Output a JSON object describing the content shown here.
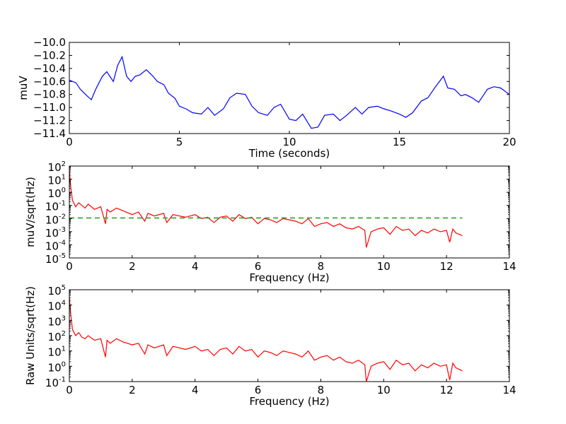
{
  "chart_data": [
    {
      "type": "line",
      "xlabel": "Time (seconds)",
      "ylabel": "muV",
      "xlim": [
        0,
        20
      ],
      "ylim": [
        -11.4,
        -10.0
      ],
      "x_ticks": [
        0,
        5,
        10,
        15,
        20
      ],
      "x_tick_labels": [
        "0",
        "5",
        "10",
        "15",
        "20"
      ],
      "y_ticks": [
        -11.4,
        -11.2,
        -11.0,
        -10.8,
        -10.6,
        -10.4,
        -10.2,
        -10.0
      ],
      "y_tick_labels": [
        "−11.4",
        "−11.2",
        "−11.0",
        "−10.8",
        "−10.6",
        "−10.4",
        "−10.2",
        "−10.0"
      ],
      "grid": false,
      "series": [
        {
          "color": "#0000ff",
          "style": "solid",
          "x": [
            0,
            0.3,
            0.5,
            0.8,
            1.0,
            1.2,
            1.5,
            1.7,
            2.0,
            2.2,
            2.4,
            2.6,
            2.8,
            3.0,
            3.2,
            3.5,
            3.8,
            4.0,
            4.3,
            4.5,
            4.8,
            5.0,
            5.3,
            5.6,
            6.0,
            6.3,
            6.6,
            7.0,
            7.3,
            7.6,
            8.0,
            8.3,
            8.6,
            9.0,
            9.3,
            9.6,
            10.0,
            10.3,
            10.6,
            11.0,
            11.3,
            11.6,
            12.0,
            12.3,
            12.6,
            13.0,
            13.3,
            13.6,
            14.0,
            14.3,
            14.6,
            15.0,
            15.3,
            15.6,
            16.0,
            16.3,
            16.6,
            17.0,
            17.2,
            17.5,
            17.8,
            18.0,
            18.3,
            18.6,
            19.0,
            19.3,
            19.6,
            20.0
          ],
          "values": [
            -10.58,
            -10.62,
            -10.72,
            -10.82,
            -10.88,
            -10.72,
            -10.52,
            -10.45,
            -10.6,
            -10.35,
            -10.22,
            -10.52,
            -10.6,
            -10.52,
            -10.5,
            -10.42,
            -10.52,
            -10.6,
            -10.65,
            -10.78,
            -10.86,
            -10.98,
            -11.02,
            -11.08,
            -11.1,
            -11.0,
            -11.12,
            -11.02,
            -10.85,
            -10.78,
            -10.8,
            -10.98,
            -11.08,
            -11.12,
            -11.0,
            -10.95,
            -11.18,
            -11.2,
            -11.1,
            -11.32,
            -11.3,
            -11.12,
            -11.1,
            -11.2,
            -11.12,
            -11.0,
            -11.1,
            -11.0,
            -10.98,
            -11.02,
            -11.05,
            -11.1,
            -11.15,
            -11.08,
            -10.9,
            -10.85,
            -10.7,
            -10.52,
            -10.7,
            -10.72,
            -10.82,
            -10.8,
            -10.85,
            -10.92,
            -10.72,
            -10.68,
            -10.7,
            -10.8
          ]
        }
      ]
    },
    {
      "type": "line",
      "xlabel": "Frequency (Hz)",
      "ylabel": "muV/sqrt(Hz)",
      "xlim": [
        0,
        14
      ],
      "ylim_log10": [
        -5,
        2
      ],
      "yscale": "log",
      "x_ticks": [
        0,
        2,
        4,
        6,
        8,
        10,
        12,
        14
      ],
      "x_tick_labels": [
        "0",
        "2",
        "4",
        "6",
        "8",
        "10",
        "12",
        "14"
      ],
      "y_ticks_log10": [
        -5,
        -4,
        -3,
        -2,
        -1,
        0,
        1,
        2
      ],
      "y_tick_bases": [
        "10",
        "10",
        "10",
        "10",
        "10",
        "10",
        "10",
        "10"
      ],
      "y_tick_exponents": [
        "-5",
        "-4",
        "-3",
        "-2",
        "-1",
        "0",
        "1",
        "2"
      ],
      "grid": false,
      "series": [
        {
          "color": "#ff0000",
          "style": "solid",
          "x": [
            0.0,
            0.05,
            0.1,
            0.2,
            0.3,
            0.4,
            0.5,
            0.6,
            0.8,
            1.0,
            1.15,
            1.2,
            1.3,
            1.5,
            1.7,
            2.0,
            2.2,
            2.4,
            2.5,
            2.7,
            3.0,
            3.1,
            3.3,
            3.5,
            3.7,
            4.0,
            4.2,
            4.4,
            4.6,
            4.8,
            5.0,
            5.2,
            5.4,
            5.6,
            5.8,
            6.0,
            6.2,
            6.4,
            6.6,
            6.8,
            7.0,
            7.2,
            7.4,
            7.6,
            7.8,
            8.0,
            8.2,
            8.4,
            8.6,
            8.8,
            9.0,
            9.2,
            9.4,
            9.45,
            9.6,
            9.8,
            10.0,
            10.2,
            10.4,
            10.6,
            10.8,
            11.0,
            11.2,
            11.4,
            11.6,
            11.8,
            12.0,
            12.1,
            12.2,
            12.3,
            12.5
          ],
          "values_log10": [
            1.6,
            0.3,
            -0.6,
            -1.1,
            -0.8,
            -1.0,
            -1.2,
            -0.9,
            -1.3,
            -1.1,
            -2.4,
            -1.3,
            -1.5,
            -1.2,
            -1.4,
            -1.7,
            -1.5,
            -2.2,
            -1.6,
            -1.8,
            -1.6,
            -2.3,
            -1.7,
            -1.8,
            -1.9,
            -1.7,
            -2.0,
            -1.9,
            -2.3,
            -1.9,
            -1.8,
            -2.2,
            -1.7,
            -2.0,
            -1.9,
            -2.4,
            -2.0,
            -2.1,
            -2.3,
            -2.0,
            -2.1,
            -2.2,
            -2.4,
            -2.0,
            -2.6,
            -2.4,
            -2.3,
            -2.6,
            -2.4,
            -2.7,
            -2.8,
            -2.6,
            -2.9,
            -4.2,
            -3.0,
            -2.8,
            -2.7,
            -3.2,
            -2.6,
            -2.9,
            -2.8,
            -3.3,
            -2.9,
            -3.1,
            -2.8,
            -3.0,
            -2.9,
            -3.8,
            -2.8,
            -3.1,
            -3.3
          ]
        },
        {
          "color": "#2ca02c",
          "style": "dashed",
          "x": [
            0,
            12.5
          ],
          "values_log10": [
            -1.95,
            -1.95
          ]
        }
      ]
    },
    {
      "type": "line",
      "xlabel": "Frequency (Hz)",
      "ylabel": "Raw Units/sqrt(Hz)",
      "xlim": [
        0,
        14
      ],
      "ylim_log10": [
        -1,
        5
      ],
      "yscale": "log",
      "x_ticks": [
        0,
        2,
        4,
        6,
        8,
        10,
        12,
        14
      ],
      "x_tick_labels": [
        "0",
        "2",
        "4",
        "6",
        "8",
        "10",
        "12",
        "14"
      ],
      "y_ticks_log10": [
        -1,
        0,
        1,
        2,
        3,
        4,
        5
      ],
      "y_tick_bases": [
        "10",
        "10",
        "10",
        "10",
        "10",
        "10",
        "10"
      ],
      "y_tick_exponents": [
        "-1",
        "0",
        "1",
        "2",
        "3",
        "4",
        "5"
      ],
      "grid": false,
      "series": [
        {
          "color": "#ff0000",
          "style": "solid",
          "x": [
            0.0,
            0.05,
            0.1,
            0.2,
            0.3,
            0.4,
            0.5,
            0.6,
            0.8,
            1.0,
            1.15,
            1.2,
            1.3,
            1.5,
            1.7,
            2.0,
            2.2,
            2.4,
            2.5,
            2.7,
            3.0,
            3.1,
            3.3,
            3.5,
            3.7,
            4.0,
            4.2,
            4.4,
            4.6,
            4.8,
            5.0,
            5.2,
            5.4,
            5.6,
            5.8,
            6.0,
            6.2,
            6.4,
            6.6,
            6.8,
            7.0,
            7.2,
            7.4,
            7.6,
            7.8,
            8.0,
            8.2,
            8.4,
            8.6,
            8.8,
            9.0,
            9.2,
            9.4,
            9.45,
            9.6,
            9.8,
            10.0,
            10.2,
            10.4,
            10.6,
            10.8,
            11.0,
            11.2,
            11.4,
            11.6,
            11.8,
            12.0,
            12.1,
            12.2,
            12.3,
            12.5
          ],
          "values_log10": [
            4.5,
            3.3,
            2.4,
            2.0,
            2.2,
            1.9,
            1.8,
            2.0,
            1.7,
            1.8,
            0.6,
            1.7,
            1.5,
            1.8,
            1.6,
            1.4,
            1.5,
            0.8,
            1.4,
            1.2,
            1.4,
            0.7,
            1.3,
            1.2,
            1.1,
            1.3,
            1.0,
            1.1,
            0.7,
            1.1,
            1.2,
            0.8,
            1.3,
            1.0,
            1.1,
            0.6,
            1.0,
            0.9,
            0.7,
            1.0,
            0.9,
            0.8,
            0.6,
            1.0,
            0.4,
            0.6,
            0.7,
            0.4,
            0.6,
            0.3,
            0.2,
            0.4,
            0.1,
            -1.0,
            0.0,
            0.2,
            0.3,
            -0.2,
            0.4,
            0.1,
            0.2,
            -0.3,
            0.1,
            -0.1,
            0.2,
            0.0,
            0.1,
            -0.9,
            0.2,
            -0.1,
            -0.3
          ]
        }
      ]
    }
  ]
}
